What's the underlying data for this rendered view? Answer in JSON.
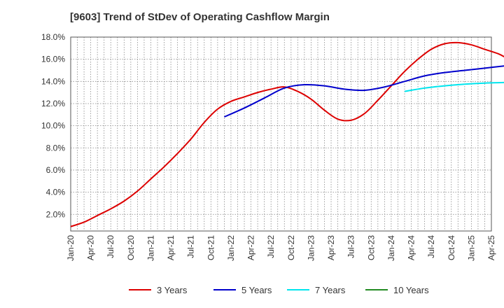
{
  "chart_data": {
    "type": "line",
    "title": "[9603]  Trend of StDev of Operating Cashflow Margin",
    "xlabel": "",
    "ylabel": "",
    "ylim": [
      0.5,
      18.0
    ],
    "yticks": [
      "2.0%",
      "4.0%",
      "6.0%",
      "8.0%",
      "10.0%",
      "12.0%",
      "14.0%",
      "16.0%",
      "18.0%"
    ],
    "ytick_values": [
      2,
      4,
      6,
      8,
      10,
      12,
      14,
      16,
      18
    ],
    "xticks": [
      "Jan-20",
      "Apr-20",
      "Jul-20",
      "Oct-20",
      "Jan-21",
      "Apr-21",
      "Jul-21",
      "Oct-21",
      "Jan-22",
      "Apr-22",
      "Jul-22",
      "Oct-22",
      "Jan-23",
      "Apr-23",
      "Jul-23",
      "Oct-23",
      "Jan-24",
      "Apr-24",
      "Jul-24",
      "Oct-24",
      "Jan-25",
      "Apr-25"
    ],
    "x_unit": "months since Jan-20",
    "grid": true,
    "legend_position": "bottom",
    "series": [
      {
        "name": "3 Years",
        "color": "#dd0000",
        "points": [
          [
            0,
            0.9
          ],
          [
            2,
            1.3
          ],
          [
            4,
            1.9
          ],
          [
            6,
            2.5
          ],
          [
            8,
            3.2
          ],
          [
            10,
            4.1
          ],
          [
            12,
            5.2
          ],
          [
            14,
            6.3
          ],
          [
            16,
            7.5
          ],
          [
            18,
            8.8
          ],
          [
            20,
            10.3
          ],
          [
            22,
            11.5
          ],
          [
            24,
            12.2
          ],
          [
            26,
            12.6
          ],
          [
            28,
            13.0
          ],
          [
            30,
            13.3
          ],
          [
            32,
            13.5
          ],
          [
            34,
            13.1
          ],
          [
            36,
            12.4
          ],
          [
            38,
            11.4
          ],
          [
            40,
            10.6
          ],
          [
            42,
            10.5
          ],
          [
            44,
            11.1
          ],
          [
            46,
            12.3
          ],
          [
            48,
            13.6
          ],
          [
            50,
            14.9
          ],
          [
            52,
            16.0
          ],
          [
            54,
            16.9
          ],
          [
            56,
            17.4
          ],
          [
            58,
            17.5
          ],
          [
            60,
            17.3
          ],
          [
            62,
            16.9
          ],
          [
            64,
            16.5
          ],
          [
            65,
            16.2
          ]
        ]
      },
      {
        "name": "5 Years",
        "color": "#0000cc",
        "points": [
          [
            23,
            10.8
          ],
          [
            26,
            11.6
          ],
          [
            29,
            12.5
          ],
          [
            32,
            13.4
          ],
          [
            35,
            13.7
          ],
          [
            38,
            13.6
          ],
          [
            41,
            13.3
          ],
          [
            44,
            13.2
          ],
          [
            47,
            13.5
          ],
          [
            50,
            14.0
          ],
          [
            53,
            14.5
          ],
          [
            56,
            14.8
          ],
          [
            59,
            15.0
          ],
          [
            62,
            15.2
          ],
          [
            65,
            15.4
          ]
        ]
      },
      {
        "name": "7 Years",
        "color": "#00e5ee",
        "points": [
          [
            50,
            13.1
          ],
          [
            53,
            13.4
          ],
          [
            56,
            13.6
          ],
          [
            59,
            13.75
          ],
          [
            62,
            13.85
          ],
          [
            65,
            13.9
          ]
        ]
      },
      {
        "name": "10 Years",
        "color": "#228b22",
        "points": []
      }
    ]
  }
}
